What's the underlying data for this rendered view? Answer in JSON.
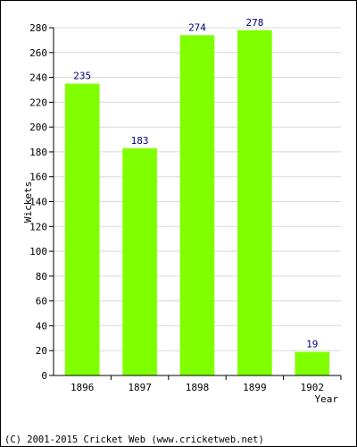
{
  "chart_data": {
    "type": "bar",
    "categories": [
      "1896",
      "1897",
      "1898",
      "1899",
      "1902"
    ],
    "values": [
      235,
      183,
      274,
      278,
      19
    ],
    "xlabel": "Year",
    "ylabel": "Wickets",
    "ylim": [
      0,
      280
    ],
    "yticks": [
      0,
      20,
      40,
      60,
      80,
      100,
      120,
      140,
      160,
      180,
      200,
      220,
      240,
      260,
      280
    ],
    "grid": true,
    "colors": {
      "bar": "#80ff00",
      "data_label": "#000080",
      "grid": "#d8d8d8"
    }
  },
  "footer": {
    "copyright": "(C) 2001-2015 Cricket Web (www.cricketweb.net)"
  }
}
